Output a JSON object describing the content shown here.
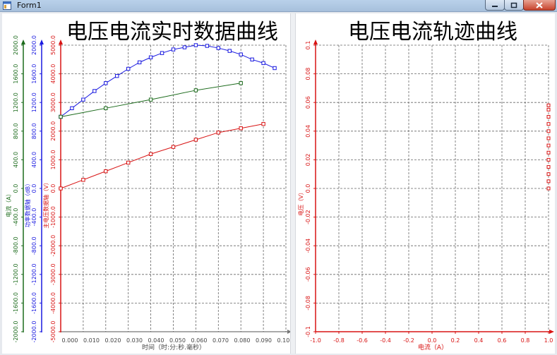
{
  "window": {
    "title": "Form1"
  },
  "colors": {
    "grid": "#666666",
    "current": "#1c6b1c",
    "power": "#1a1ae0",
    "voltage": "#d81414"
  },
  "chart_data": [
    {
      "type": "line",
      "title": "电压电流实时数据曲线",
      "xlabel": "时间（时:分:秒.毫秒）",
      "xlim": [
        0,
        0.1
      ],
      "x_ticks": [
        "0.000",
        "0.010",
        "0.020",
        "0.030",
        "0.040",
        "0.050",
        "0.060",
        "0.070",
        "0.080",
        "0.090",
        "0.100"
      ],
      "grid": true,
      "axes": [
        {
          "id": "current",
          "label": "电流（A）",
          "range": [
            -2000,
            2000
          ],
          "ticks": [
            "-2000.0",
            "-1600.0",
            "-1200.0",
            "-800.0",
            "-400.0",
            "0.0",
            "400.0",
            "800.0",
            "1200.0",
            "1600.0",
            "2000.0"
          ]
        },
        {
          "id": "power",
          "label": "功率数据轴（dB）",
          "range": [
            -2000,
            2000
          ],
          "ticks": [
            "-2000.0",
            "-1600.0",
            "-1200.0",
            "-800.0",
            "-400.0",
            "0.0",
            "400.0",
            "800.0",
            "1200.0",
            "1600.0",
            "2000.0"
          ]
        },
        {
          "id": "voltage",
          "label": "主电压数据轴（V）",
          "range": [
            -5000,
            5000
          ],
          "ticks": [
            "-5000.0",
            "-4000.0",
            "-3000.0",
            "-2000.0",
            "-1000.0",
            "0.0",
            "1000.0",
            "2000.0",
            "3000.0",
            "4000.0",
            "5000.0"
          ]
        }
      ],
      "series": [
        {
          "axis": "power",
          "x": [
            0,
            0.005,
            0.01,
            0.015,
            0.02,
            0.025,
            0.03,
            0.035,
            0.04,
            0.045,
            0.05,
            0.055,
            0.06,
            0.065,
            0.07,
            0.075,
            0.08,
            0.085,
            0.09,
            0.095
          ],
          "values": [
            1000,
            1120,
            1240,
            1360,
            1470,
            1570,
            1670,
            1760,
            1830,
            1890,
            1940,
            1970,
            2000,
            1990,
            1960,
            1920,
            1870,
            1800,
            1750,
            1680
          ]
        },
        {
          "axis": "current",
          "x": [
            0,
            0.02,
            0.04,
            0.06,
            0.08
          ],
          "values": [
            1000,
            1120,
            1240,
            1370,
            1470
          ]
        },
        {
          "axis": "voltage",
          "x": [
            0,
            0.01,
            0.02,
            0.03,
            0.04,
            0.05,
            0.06,
            0.07,
            0.08,
            0.09
          ],
          "values": [
            0,
            300,
            600,
            900,
            1200,
            1450,
            1700,
            1950,
            2100,
            2250
          ]
        }
      ]
    },
    {
      "type": "scatter",
      "title": "电压电流轨迹曲线",
      "xlabel": "电流（A）",
      "ylabel": "电压（V）",
      "xlim": [
        -1,
        1
      ],
      "ylim": [
        -0.1,
        0.1
      ],
      "x_ticks": [
        "-1.0",
        "-0.8",
        "-0.6",
        "-0.4",
        "-0.2",
        "0.0",
        "0.2",
        "0.4",
        "0.6",
        "0.8",
        "1.0"
      ],
      "y_ticks": [
        "-0.1",
        "-0.08",
        "-0.06",
        "-0.04",
        "-0.02",
        "0.0",
        "0.02",
        "0.04",
        "0.06",
        "0.08",
        "0.1"
      ],
      "grid": true,
      "series": [
        {
          "axis": "voltage",
          "x": [
            1,
            1,
            1,
            1,
            1,
            1,
            1,
            1,
            1,
            1,
            1,
            1,
            1
          ],
          "values": [
            0,
            0.005,
            0.01,
            0.015,
            0.02,
            0.025,
            0.03,
            0.035,
            0.04,
            0.045,
            0.05,
            0.055,
            0.058
          ]
        }
      ]
    }
  ]
}
